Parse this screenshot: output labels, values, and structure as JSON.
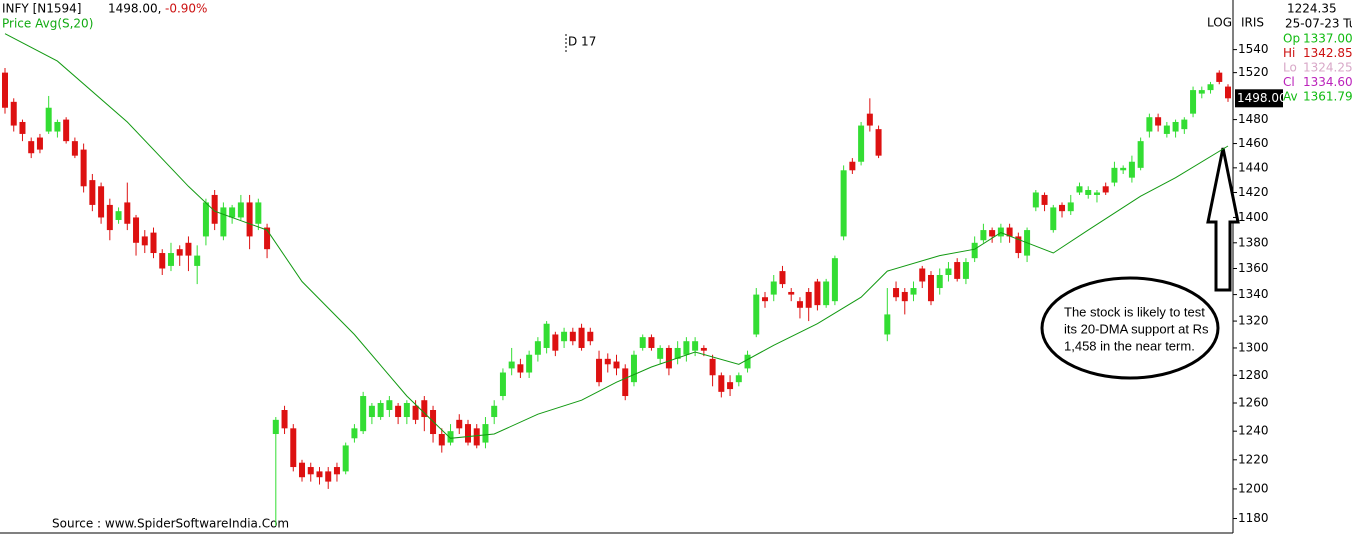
{
  "chart_data": {
    "type": "candlestick",
    "log_scale": true,
    "title": "INFY [N1594]",
    "price_text": "1498.00,",
    "change": "-0.90%",
    "legend": "Price  Avg(S,20)",
    "period_marker": "D 17",
    "scale_mode": "LOG",
    "indicator": "IRIS",
    "source": "Source : www.SpiderSoftwareIndia.Com",
    "up_color": "#33dd33",
    "down_color": "#dd1111",
    "ma_color": "#119911",
    "ylim": [
      1171,
      1584
    ],
    "yticks": [
      1180,
      1200,
      1220,
      1240,
      1260,
      1280,
      1300,
      1320,
      1340,
      1360,
      1380,
      1400,
      1420,
      1440,
      1460,
      1480,
      1520,
      1540
    ],
    "price_tag": {
      "value": 1498,
      "label": "1498.00"
    },
    "open": [
      1520,
      1495,
      1478,
      1462,
      1465,
      1470,
      1470,
      1480,
      1462,
      1455,
      1430,
      1425,
      1410,
      1398,
      1412,
      1400,
      1385,
      1388,
      1372,
      1362,
      1375,
      1380,
      1362,
      1385,
      1418,
      1385,
      1400,
      1400,
      1412,
      1395,
      1392,
      1238,
      1255,
      1242,
      1218,
      1215,
      1212,
      1212,
      1215,
      1212,
      1235,
      1240,
      1250,
      1250,
      1255,
      1258,
      1250,
      1258,
      1262,
      1255,
      1238,
      1232,
      1248,
      1245,
      1242,
      1232,
      1250,
      1265,
      1285,
      1288,
      1282,
      1295,
      1300,
      1310,
      1305,
      1312,
      1315,
      1312,
      1292,
      1292,
      1290,
      1285,
      1275,
      1300,
      1308,
      1292,
      1300,
      1292,
      1295,
      1298,
      1300,
      1292,
      1280,
      1275,
      1275,
      1285,
      1310,
      1338,
      1340,
      1358,
      1342,
      1335,
      1342,
      1350,
      1332,
      1335,
      1385,
      1445,
      1445,
      1485,
      1472,
      1310,
      1345,
      1342,
      1340,
      1360,
      1355,
      1345,
      1355,
      1365,
      1352,
      1368,
      1382,
      1390,
      1385,
      1392,
      1385,
      1370,
      1408,
      1418,
      1390,
      1410,
      1405,
      1420,
      1418,
      1418,
      1425,
      1428,
      1438,
      1432,
      1440,
      1470,
      1482,
      1468,
      1470,
      1472,
      1485,
      1502,
      1505,
      1520,
      1508
    ],
    "high": [
      1524,
      1498,
      1480,
      1465,
      1468,
      1500,
      1480,
      1482,
      1465,
      1460,
      1435,
      1428,
      1415,
      1408,
      1428,
      1402,
      1390,
      1392,
      1375,
      1380,
      1378,
      1385,
      1378,
      1415,
      1422,
      1412,
      1410,
      1418,
      1418,
      1415,
      1395,
      1250,
      1258,
      1245,
      1220,
      1218,
      1215,
      1215,
      1218,
      1232,
      1245,
      1268,
      1260,
      1262,
      1265,
      1260,
      1262,
      1262,
      1265,
      1258,
      1242,
      1245,
      1252,
      1248,
      1245,
      1250,
      1262,
      1285,
      1300,
      1292,
      1298,
      1308,
      1320,
      1312,
      1315,
      1315,
      1318,
      1315,
      1298,
      1296,
      1295,
      1288,
      1298,
      1310,
      1310,
      1302,
      1302,
      1305,
      1308,
      1308,
      1302,
      1295,
      1282,
      1280,
      1282,
      1298,
      1345,
      1342,
      1355,
      1362,
      1345,
      1338,
      1345,
      1352,
      1352,
      1370,
      1442,
      1448,
      1478,
      1498,
      1475,
      1345,
      1350,
      1345,
      1350,
      1362,
      1358,
      1360,
      1365,
      1368,
      1368,
      1385,
      1395,
      1392,
      1395,
      1395,
      1388,
      1392,
      1422,
      1420,
      1410,
      1412,
      1418,
      1428,
      1425,
      1422,
      1428,
      1445,
      1442,
      1450,
      1465,
      1485,
      1485,
      1478,
      1480,
      1482,
      1508,
      1508,
      1512,
      1522,
      1510
    ],
    "low": [
      1485,
      1470,
      1462,
      1448,
      1452,
      1468,
      1465,
      1460,
      1448,
      1420,
      1405,
      1395,
      1382,
      1395,
      1390,
      1370,
      1372,
      1368,
      1355,
      1358,
      1362,
      1358,
      1348,
      1378,
      1390,
      1382,
      1395,
      1398,
      1375,
      1390,
      1368,
      1175,
      1238,
      1212,
      1205,
      1205,
      1203,
      1200,
      1205,
      1210,
      1232,
      1238,
      1245,
      1248,
      1250,
      1245,
      1245,
      1245,
      1240,
      1232,
      1225,
      1230,
      1238,
      1230,
      1228,
      1228,
      1245,
      1262,
      1280,
      1278,
      1278,
      1290,
      1296,
      1294,
      1300,
      1302,
      1298,
      1302,
      1272,
      1282,
      1280,
      1262,
      1272,
      1298,
      1298,
      1288,
      1280,
      1288,
      1290,
      1294,
      1294,
      1272,
      1264,
      1265,
      1272,
      1282,
      1308,
      1330,
      1335,
      1345,
      1335,
      1322,
      1320,
      1328,
      1330,
      1332,
      1382,
      1435,
      1442,
      1470,
      1448,
      1305,
      1335,
      1325,
      1335,
      1345,
      1332,
      1340,
      1350,
      1350,
      1348,
      1365,
      1380,
      1380,
      1380,
      1380,
      1368,
      1365,
      1405,
      1405,
      1388,
      1400,
      1402,
      1418,
      1415,
      1412,
      1418,
      1425,
      1435,
      1428,
      1438,
      1465,
      1470,
      1465,
      1465,
      1468,
      1482,
      1498,
      1502,
      1510,
      1495
    ],
    "close": [
      1490,
      1475,
      1468,
      1452,
      1455,
      1490,
      1478,
      1462,
      1450,
      1425,
      1410,
      1400,
      1390,
      1405,
      1395,
      1380,
      1378,
      1372,
      1360,
      1372,
      1370,
      1370,
      1370,
      1412,
      1395,
      1408,
      1408,
      1412,
      1385,
      1412,
      1375,
      1248,
      1242,
      1215,
      1208,
      1210,
      1208,
      1205,
      1210,
      1230,
      1242,
      1265,
      1258,
      1260,
      1262,
      1250,
      1260,
      1248,
      1250,
      1238,
      1230,
      1240,
      1242,
      1232,
      1230,
      1245,
      1258,
      1282,
      1290,
      1282,
      1295,
      1305,
      1318,
      1298,
      1312,
      1305,
      1300,
      1305,
      1275,
      1288,
      1285,
      1265,
      1295,
      1308,
      1300,
      1300,
      1285,
      1300,
      1305,
      1305,
      1298,
      1280,
      1268,
      1270,
      1280,
      1295,
      1340,
      1335,
      1350,
      1348,
      1340,
      1330,
      1330,
      1332,
      1350,
      1368,
      1438,
      1438,
      1475,
      1475,
      1450,
      1325,
      1338,
      1335,
      1345,
      1350,
      1335,
      1355,
      1360,
      1352,
      1365,
      1380,
      1390,
      1385,
      1392,
      1385,
      1372,
      1390,
      1420,
      1410,
      1408,
      1405,
      1412,
      1425,
      1422,
      1420,
      1420,
      1440,
      1440,
      1445,
      1462,
      1482,
      1475,
      1475,
      1478,
      1480,
      1505,
      1505,
      1510,
      1512,
      1498
    ],
    "ma": {
      "x": [
        0,
        6,
        14,
        21,
        24,
        30,
        34,
        40,
        46,
        51,
        56,
        61,
        66,
        70,
        74,
        79,
        84,
        88,
        93,
        98,
        101,
        107,
        111,
        114,
        120,
        124,
        130,
        134,
        140
      ],
      "values": [
        1554,
        1530,
        1478,
        1425,
        1405,
        1390,
        1350,
        1310,
        1265,
        1235,
        1238,
        1252,
        1262,
        1275,
        1286,
        1297,
        1288,
        1302,
        1318,
        1338,
        1358,
        1370,
        1375,
        1388,
        1372,
        1390,
        1417,
        1432,
        1458
      ]
    },
    "info": {
      "value": "1224.35",
      "date": "25-07-23 Tu",
      "rows": [
        {
          "label": "Op",
          "value": "1337.00",
          "color": "#11bb11"
        },
        {
          "label": "Hi",
          "value": "1342.85",
          "color": "#cc1111"
        },
        {
          "label": "Lo",
          "value": "1324.25",
          "color": "#d8a8c8"
        },
        {
          "label": "Cl",
          "value": "1334.60",
          "color": "#bb22bb"
        },
        {
          "label": "Av",
          "value": "1361.79",
          "color": "#11bb11"
        }
      ]
    },
    "annotation": [
      "The stock is likely to test",
      "its 20-DMA support at Rs",
      "1,458 in the near term."
    ]
  }
}
